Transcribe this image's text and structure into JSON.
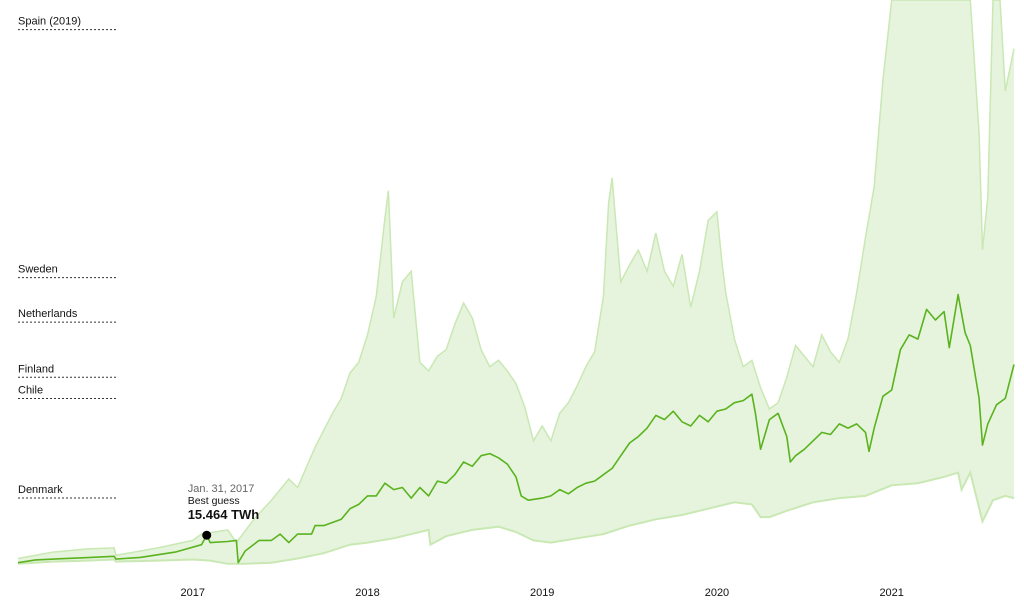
{
  "chart_data": {
    "type": "area",
    "colors": {
      "band": "#e6f4dd",
      "band_edge": "#c9e8b4",
      "line": "#5ab31e",
      "dot": "#000000",
      "reference": "#333333"
    },
    "x_ticks": [
      "2017",
      "2018",
      "2019",
      "2020",
      "2021"
    ],
    "references": [
      {
        "label": "Spain (2019)",
        "value": 254
      },
      {
        "label": "Sweden",
        "value": 137
      },
      {
        "label": "Netherlands",
        "value": 116
      },
      {
        "label": "Finland",
        "value": 90
      },
      {
        "label": "Chile",
        "value": 80
      },
      {
        "label": "Denmark",
        "value": 33
      }
    ],
    "annotation": {
      "date": "Jan. 31, 2017",
      "label": "Best guess",
      "value": "15.464 TWh",
      "x": 2017.08,
      "y": 15.464
    },
    "xlim": [
      2016.0,
      2021.7
    ],
    "ylim": [
      0,
      268
    ],
    "series": [
      {
        "role": "best-guess",
        "points": [
          [
            2016.0,
            2.5
          ],
          [
            2016.1,
            3.8
          ],
          [
            2016.25,
            4.4
          ],
          [
            2016.4,
            4.9
          ],
          [
            2016.55,
            5.5
          ],
          [
            2016.56,
            4.2
          ],
          [
            2016.7,
            5.0
          ],
          [
            2016.9,
            7.5
          ],
          [
            2017.05,
            11.0
          ],
          [
            2017.08,
            15.464
          ],
          [
            2017.1,
            12.0
          ],
          [
            2017.2,
            12.5
          ],
          [
            2017.25,
            13.0
          ],
          [
            2017.26,
            2.5
          ],
          [
            2017.3,
            8.0
          ],
          [
            2017.38,
            13.0
          ],
          [
            2017.45,
            13.0
          ],
          [
            2017.5,
            16.0
          ],
          [
            2017.55,
            12.0
          ],
          [
            2017.6,
            16.0
          ],
          [
            2017.68,
            16.0
          ],
          [
            2017.7,
            20.0
          ],
          [
            2017.75,
            20.0
          ],
          [
            2017.85,
            23.0
          ],
          [
            2017.9,
            28.0
          ],
          [
            2017.95,
            30.0
          ],
          [
            2018.0,
            34.0
          ],
          [
            2018.05,
            34.0
          ],
          [
            2018.1,
            40.0
          ],
          [
            2018.15,
            37.0
          ],
          [
            2018.2,
            38.0
          ],
          [
            2018.25,
            33.0
          ],
          [
            2018.3,
            38.0
          ],
          [
            2018.35,
            34.0
          ],
          [
            2018.4,
            41.0
          ],
          [
            2018.45,
            40.0
          ],
          [
            2018.5,
            44.0
          ],
          [
            2018.55,
            50.0
          ],
          [
            2018.6,
            48.0
          ],
          [
            2018.65,
            53.0
          ],
          [
            2018.7,
            54.0
          ],
          [
            2018.75,
            52.0
          ],
          [
            2018.8,
            49.0
          ],
          [
            2018.85,
            43.0
          ],
          [
            2018.88,
            34.0
          ],
          [
            2018.92,
            32.0
          ],
          [
            2019.0,
            33.0
          ],
          [
            2019.05,
            34.0
          ],
          [
            2019.1,
            37.0
          ],
          [
            2019.15,
            35.0
          ],
          [
            2019.2,
            38.0
          ],
          [
            2019.25,
            40.0
          ],
          [
            2019.3,
            41.0
          ],
          [
            2019.35,
            44.0
          ],
          [
            2019.4,
            47.0
          ],
          [
            2019.45,
            53.0
          ],
          [
            2019.5,
            59.0
          ],
          [
            2019.55,
            62.0
          ],
          [
            2019.6,
            66.0
          ],
          [
            2019.65,
            72.0
          ],
          [
            2019.7,
            70.0
          ],
          [
            2019.75,
            74.0
          ],
          [
            2019.8,
            69.0
          ],
          [
            2019.85,
            67.0
          ],
          [
            2019.9,
            72.0
          ],
          [
            2019.95,
            69.0
          ],
          [
            2020.0,
            74.0
          ],
          [
            2020.05,
            75.0
          ],
          [
            2020.1,
            78.0
          ],
          [
            2020.15,
            79.0
          ],
          [
            2020.2,
            82.0
          ],
          [
            2020.22,
            73.0
          ],
          [
            2020.25,
            56.0
          ],
          [
            2020.3,
            70.0
          ],
          [
            2020.35,
            73.0
          ],
          [
            2020.4,
            62.0
          ],
          [
            2020.42,
            50.0
          ],
          [
            2020.45,
            53.0
          ],
          [
            2020.5,
            56.0
          ],
          [
            2020.55,
            60.0
          ],
          [
            2020.6,
            64.0
          ],
          [
            2020.65,
            63.0
          ],
          [
            2020.7,
            68.0
          ],
          [
            2020.75,
            66.0
          ],
          [
            2020.8,
            68.0
          ],
          [
            2020.85,
            64.0
          ],
          [
            2020.87,
            55.0
          ],
          [
            2020.9,
            66.0
          ],
          [
            2020.95,
            81.0
          ],
          [
            2021.0,
            84.0
          ],
          [
            2021.05,
            103.0
          ],
          [
            2021.1,
            110.0
          ],
          [
            2021.15,
            108.0
          ],
          [
            2021.2,
            122.0
          ],
          [
            2021.25,
            117.0
          ],
          [
            2021.3,
            121.0
          ],
          [
            2021.33,
            104.0
          ],
          [
            2021.38,
            129.0
          ],
          [
            2021.42,
            111.0
          ],
          [
            2021.45,
            105.0
          ],
          [
            2021.5,
            80.0
          ],
          [
            2021.52,
            58.0
          ],
          [
            2021.55,
            68.0
          ],
          [
            2021.6,
            77.0
          ],
          [
            2021.65,
            80.0
          ],
          [
            2021.7,
            96.0
          ]
        ]
      },
      {
        "role": "upper-bound",
        "points": [
          [
            2016.0,
            4.5
          ],
          [
            2016.2,
            7.5
          ],
          [
            2016.4,
            9.0
          ],
          [
            2016.55,
            9.5
          ],
          [
            2016.56,
            6.0
          ],
          [
            2016.8,
            9.5
          ],
          [
            2017.0,
            13.0
          ],
          [
            2017.05,
            16.0
          ],
          [
            2017.2,
            18.0
          ],
          [
            2017.25,
            12.0
          ],
          [
            2017.35,
            23.0
          ],
          [
            2017.45,
            32.0
          ],
          [
            2017.55,
            42.0
          ],
          [
            2017.6,
            38.0
          ],
          [
            2017.7,
            57.0
          ],
          [
            2017.8,
            73.0
          ],
          [
            2017.85,
            80.0
          ],
          [
            2017.9,
            92.0
          ],
          [
            2017.95,
            97.0
          ],
          [
            2018.0,
            110.0
          ],
          [
            2018.05,
            128.0
          ],
          [
            2018.1,
            165.0
          ],
          [
            2018.12,
            178.0
          ],
          [
            2018.15,
            118.0
          ],
          [
            2018.2,
            135.0
          ],
          [
            2018.25,
            140.0
          ],
          [
            2018.3,
            97.0
          ],
          [
            2018.35,
            93.0
          ],
          [
            2018.4,
            100.0
          ],
          [
            2018.45,
            103.0
          ],
          [
            2018.5,
            115.0
          ],
          [
            2018.55,
            125.0
          ],
          [
            2018.6,
            118.0
          ],
          [
            2018.65,
            103.0
          ],
          [
            2018.7,
            95.0
          ],
          [
            2018.75,
            98.0
          ],
          [
            2018.8,
            93.0
          ],
          [
            2018.85,
            87.0
          ],
          [
            2018.9,
            76.0
          ],
          [
            2018.95,
            60.0
          ],
          [
            2019.0,
            67.0
          ],
          [
            2019.05,
            60.0
          ],
          [
            2019.1,
            73.0
          ],
          [
            2019.15,
            78.0
          ],
          [
            2019.2,
            86.0
          ],
          [
            2019.25,
            95.0
          ],
          [
            2019.3,
            102.0
          ],
          [
            2019.35,
            128.0
          ],
          [
            2019.38,
            172.0
          ],
          [
            2019.4,
            184.0
          ],
          [
            2019.45,
            135.0
          ],
          [
            2019.5,
            143.0
          ],
          [
            2019.55,
            150.0
          ],
          [
            2019.6,
            140.0
          ],
          [
            2019.65,
            158.0
          ],
          [
            2019.7,
            140.0
          ],
          [
            2019.75,
            133.0
          ],
          [
            2019.8,
            148.0
          ],
          [
            2019.85,
            123.0
          ],
          [
            2019.9,
            140.0
          ],
          [
            2019.95,
            164.0
          ],
          [
            2020.0,
            168.0
          ],
          [
            2020.03,
            143.0
          ],
          [
            2020.05,
            130.0
          ],
          [
            2020.1,
            108.0
          ],
          [
            2020.15,
            95.0
          ],
          [
            2020.2,
            98.0
          ],
          [
            2020.25,
            85.0
          ],
          [
            2020.3,
            75.0
          ],
          [
            2020.35,
            78.0
          ],
          [
            2020.4,
            90.0
          ],
          [
            2020.45,
            105.0
          ],
          [
            2020.5,
            100.0
          ],
          [
            2020.55,
            95.0
          ],
          [
            2020.6,
            110.0
          ],
          [
            2020.65,
            102.0
          ],
          [
            2020.7,
            97.0
          ],
          [
            2020.75,
            108.0
          ],
          [
            2020.8,
            130.0
          ],
          [
            2020.85,
            156.0
          ],
          [
            2020.9,
            180.0
          ],
          [
            2020.95,
            230.0
          ],
          [
            2021.0,
            268.0
          ],
          [
            2021.1,
            268.0
          ],
          [
            2021.2,
            268.0
          ],
          [
            2021.3,
            268.0
          ],
          [
            2021.4,
            268.0
          ],
          [
            2021.45,
            268.0
          ],
          [
            2021.5,
            205.0
          ],
          [
            2021.52,
            150.0
          ],
          [
            2021.55,
            175.0
          ],
          [
            2021.58,
            268.0
          ],
          [
            2021.62,
            268.0
          ],
          [
            2021.65,
            225.0
          ],
          [
            2021.7,
            245.0
          ]
        ]
      },
      {
        "role": "lower-bound",
        "points": [
          [
            2016.0,
            2.0
          ],
          [
            2016.2,
            3.0
          ],
          [
            2016.4,
            3.5
          ],
          [
            2016.55,
            4.0
          ],
          [
            2016.56,
            3.0
          ],
          [
            2016.8,
            3.5
          ],
          [
            2017.0,
            4.0
          ],
          [
            2017.1,
            3.5
          ],
          [
            2017.2,
            2.0
          ],
          [
            2017.3,
            2.0
          ],
          [
            2017.45,
            2.5
          ],
          [
            2017.6,
            4.5
          ],
          [
            2017.75,
            7.0
          ],
          [
            2017.9,
            11.0
          ],
          [
            2018.0,
            12.0
          ],
          [
            2018.15,
            14.0
          ],
          [
            2018.3,
            17.0
          ],
          [
            2018.35,
            18.0
          ],
          [
            2018.36,
            11.0
          ],
          [
            2018.45,
            15.0
          ],
          [
            2018.6,
            18.0
          ],
          [
            2018.75,
            19.5
          ],
          [
            2018.85,
            17.0
          ],
          [
            2018.95,
            13.0
          ],
          [
            2019.05,
            12.0
          ],
          [
            2019.2,
            14.0
          ],
          [
            2019.35,
            16.0
          ],
          [
            2019.5,
            20.0
          ],
          [
            2019.65,
            23.0
          ],
          [
            2019.8,
            25.0
          ],
          [
            2019.95,
            28.0
          ],
          [
            2020.1,
            31.0
          ],
          [
            2020.2,
            30.0
          ],
          [
            2020.25,
            24.0
          ],
          [
            2020.3,
            24.0
          ],
          [
            2020.4,
            27.0
          ],
          [
            2020.55,
            31.0
          ],
          [
            2020.7,
            33.0
          ],
          [
            2020.85,
            34.0
          ],
          [
            2021.0,
            39.0
          ],
          [
            2021.15,
            40.0
          ],
          [
            2021.3,
            43.0
          ],
          [
            2021.38,
            45.0
          ],
          [
            2021.4,
            37.0
          ],
          [
            2021.45,
            45.0
          ],
          [
            2021.52,
            22.0
          ],
          [
            2021.58,
            32.0
          ],
          [
            2021.65,
            34.0
          ],
          [
            2021.7,
            33.0
          ]
        ]
      }
    ]
  }
}
